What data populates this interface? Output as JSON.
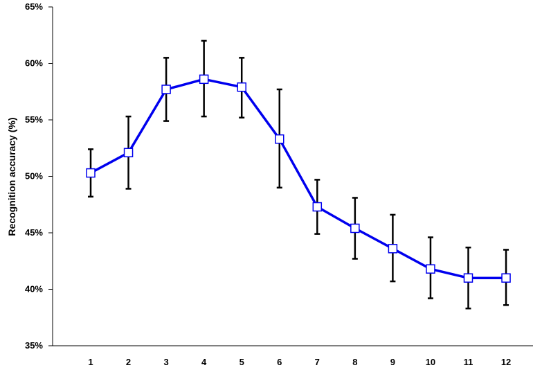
{
  "chart_data": {
    "type": "line",
    "title": "",
    "xlabel": "",
    "ylabel": "Recognition accuracy (%)",
    "ylim": [
      35,
      65
    ],
    "ytick_step": 5,
    "ytick_suffix": "%",
    "grid": false,
    "legend": "none",
    "categories": [
      "1",
      "2",
      "3",
      "4",
      "5",
      "6",
      "7",
      "8",
      "9",
      "10",
      "11",
      "12"
    ],
    "series": [
      {
        "values": [
          50.3,
          52.1,
          57.7,
          58.6,
          57.9,
          53.3,
          47.3,
          45.4,
          43.6,
          41.8,
          41.0,
          41.0
        ],
        "error_low": [
          48.2,
          48.9,
          54.9,
          55.3,
          55.2,
          49.0,
          44.9,
          42.7,
          40.7,
          39.2,
          38.3,
          38.6
        ],
        "error_high": [
          52.4,
          55.3,
          60.5,
          62.0,
          60.5,
          57.7,
          49.7,
          48.1,
          46.6,
          44.6,
          43.7,
          43.5
        ],
        "color": "#0000ee"
      }
    ]
  }
}
